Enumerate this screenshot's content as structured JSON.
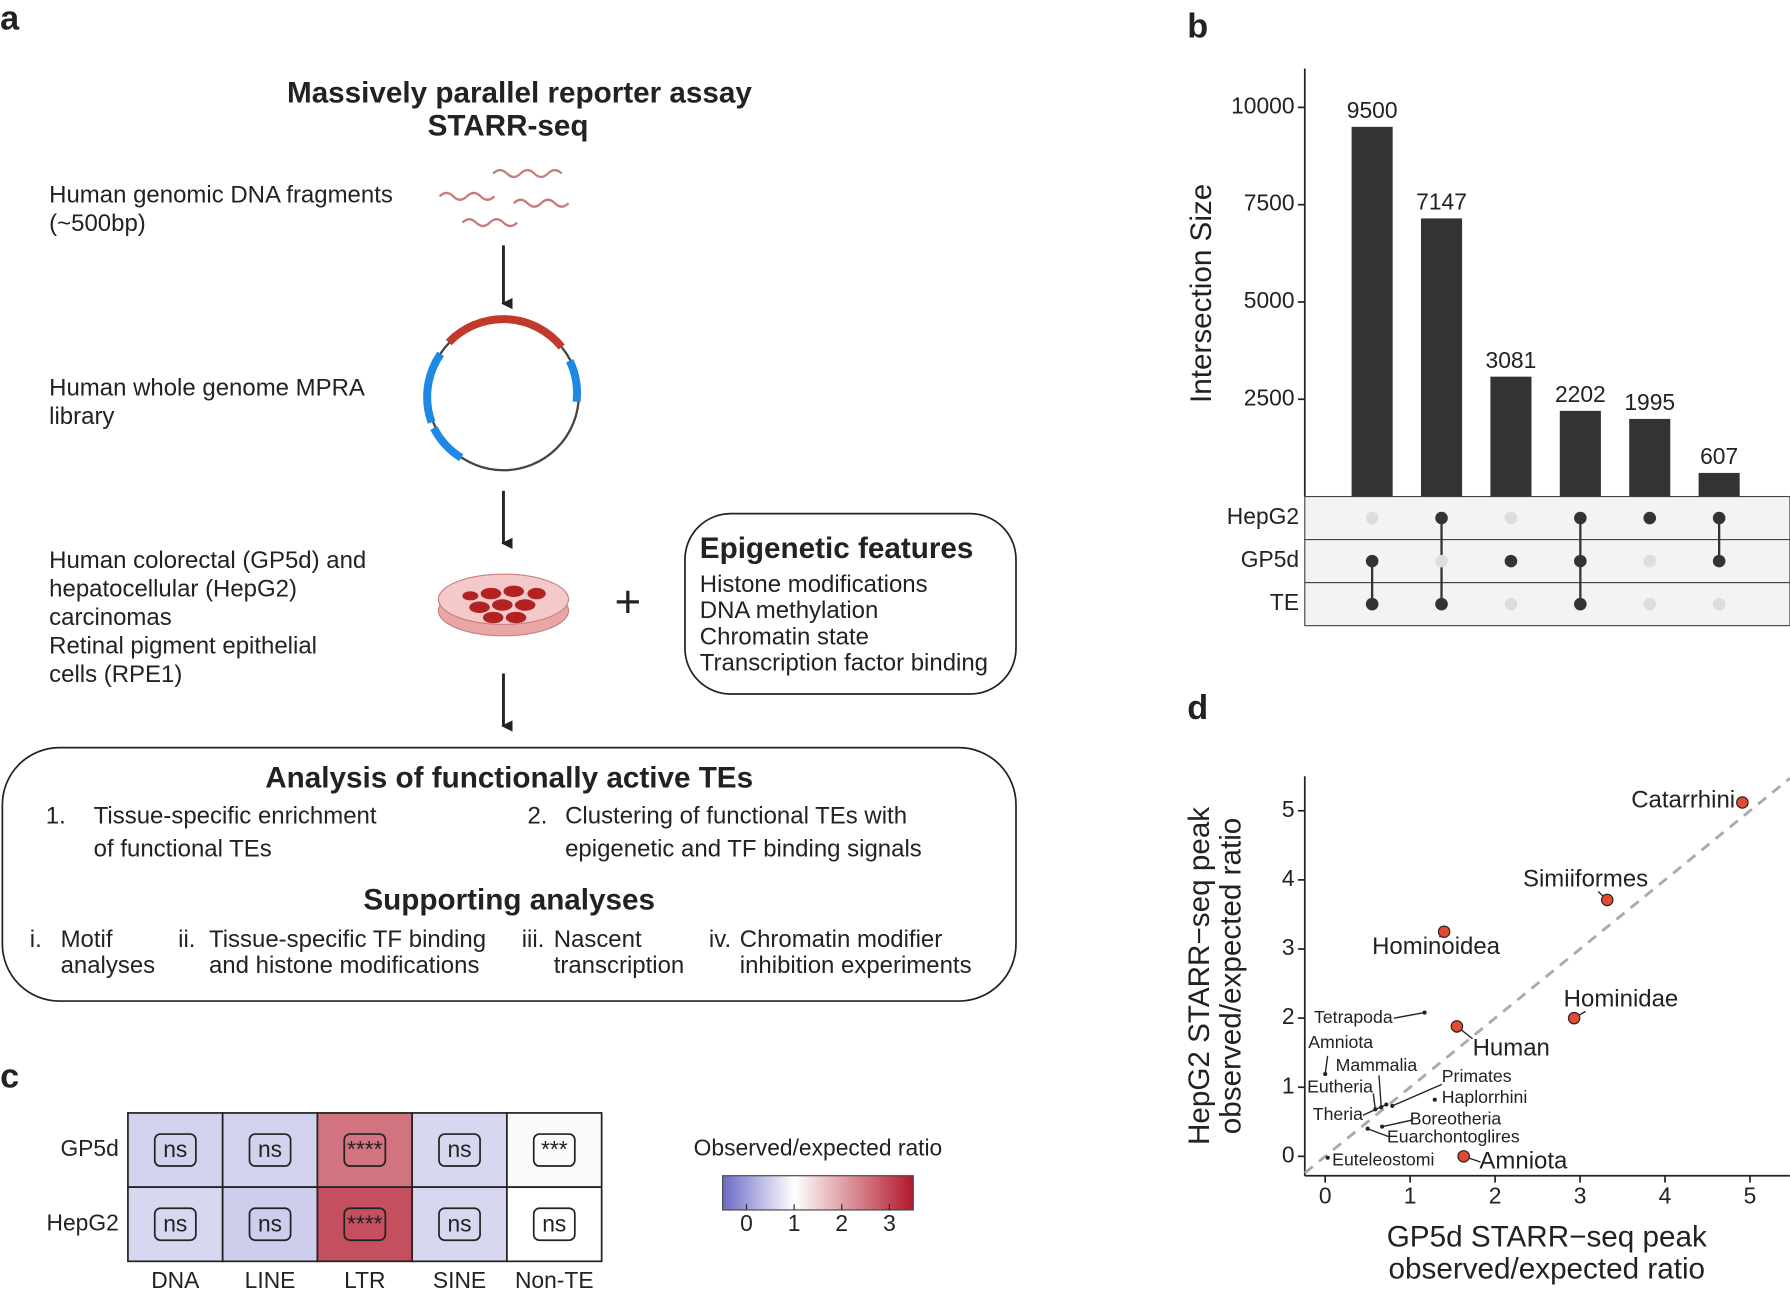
{
  "panel_labels": [
    "a",
    "b",
    "c",
    "d"
  ],
  "panel_a": {
    "title": [
      "Massively parallel reporter assay",
      "STARR-seq"
    ],
    "steps": [
      [
        "Human genomic DNA fragments",
        "(~500bp)"
      ],
      [
        "Human whole genome MPRA",
        "library"
      ],
      [
        "Human colorectal (GP5d) and",
        "hepatocellular (HepG2)",
        "carcinomas",
        "Retinal pigment epithelial",
        "cells (RPE1)"
      ]
    ],
    "plus": "+",
    "epigenetic": {
      "title": "Epigenetic features",
      "items": [
        "Histone modifications",
        "DNA methylation",
        "Chromatin state",
        "Transcription factor binding"
      ]
    },
    "analysis": {
      "title": "Analysis of functionally active TEs",
      "items": [
        {
          "marker": "1.",
          "lines": [
            "Tissue-specific enrichment",
            "of functional TEs"
          ]
        },
        {
          "marker": "2.",
          "lines": [
            "Clustering of functional TEs with",
            "epigenetic and TF binding signals"
          ]
        }
      ],
      "supporting_title": "Supporting analyses",
      "supporting": [
        {
          "marker": "i.",
          "lines": [
            "Motif",
            "analyses"
          ]
        },
        {
          "marker": "ii.",
          "lines": [
            "Tissue-specific TF binding",
            "and histone modifications"
          ]
        },
        {
          "marker": "iii.",
          "lines": [
            "Nascent",
            "transcription"
          ]
        },
        {
          "marker": "iv.",
          "lines": [
            "Chromatin modifier",
            "inhibition experiments"
          ]
        }
      ]
    }
  },
  "chart_data": [
    {
      "type": "upset",
      "ylabel": "Intersection Size",
      "categories": [
        null,
        null,
        null,
        null,
        null,
        null
      ],
      "values": [
        9500,
        7147,
        3081,
        2202,
        1995,
        607
      ],
      "color": "#333333",
      "ylim": [
        0,
        11000
      ],
      "yticks": [
        2500,
        5000,
        7500,
        10000
      ],
      "sets": [
        "HepG2",
        "GP5d",
        "TE"
      ],
      "matrix": [
        [
          false,
          true,
          true
        ],
        [
          true,
          false,
          true
        ],
        [
          false,
          true,
          false
        ],
        [
          true,
          true,
          true
        ],
        [
          true,
          false,
          false
        ],
        [
          true,
          true,
          false
        ]
      ],
      "inactive_color": "#dddddd"
    },
    {
      "type": "heatmap",
      "rows": [
        "GP5d",
        "HepG2"
      ],
      "columns": [
        "DNA",
        "LINE",
        "LTR",
        "SINE",
        "Non-TE"
      ],
      "values": [
        [
          0.55,
          0.55,
          2.5,
          0.6,
          0.95
        ],
        [
          0.6,
          0.5,
          2.9,
          0.6,
          1.0
        ]
      ],
      "annotations": [
        [
          "ns",
          "ns",
          "****",
          "ns",
          "***"
        ],
        [
          "ns",
          "ns",
          "****",
          "ns",
          "ns"
        ]
      ],
      "colorbar_title": "Observed/expected ratio",
      "color_range": [
        -0.5,
        3.5
      ],
      "color_mid": 1,
      "colors": [
        "#6d6ac6",
        "#ffffff",
        "#b2182b"
      ],
      "colorbar_ticks": [
        0,
        1,
        2,
        3
      ]
    },
    {
      "type": "scatter",
      "xlabel": [
        "GP5d STARR−seq peak",
        "observed/expected ratio"
      ],
      "ylabel": [
        "HepG2 STARR−seq peak",
        "observed/expected ratio"
      ],
      "xlim": [
        -0.24,
        5.47
      ],
      "ylim": [
        -0.28,
        5.5
      ],
      "xticks": [
        0,
        1,
        2,
        3,
        4,
        5
      ],
      "yticks": [
        0,
        1,
        2,
        3,
        4,
        5
      ],
      "identity_line": true,
      "highlight_color": "#e34a33",
      "point_color": "#222222",
      "points": [
        {
          "label": "Catarrhini",
          "x": 4.91,
          "y": 5.12,
          "highlighted": true
        },
        {
          "label": "Simiiformes",
          "x": 3.32,
          "y": 3.71,
          "highlighted": true
        },
        {
          "label": "Hominoidea",
          "x": 1.4,
          "y": 3.25,
          "highlighted": true
        },
        {
          "label": "Hominidae",
          "x": 2.93,
          "y": 2.0,
          "highlighted": true
        },
        {
          "label": "Human",
          "x": 1.55,
          "y": 1.88,
          "highlighted": true
        },
        {
          "label": "Amniota",
          "x": 1.63,
          "y": 0.0,
          "highlighted": true
        },
        {
          "label": "Tetrapoda",
          "x": 1.17,
          "y": 2.08,
          "highlighted": false
        },
        {
          "label": "Amniota",
          "x": 0.0,
          "y": 1.19,
          "highlighted": false
        },
        {
          "label": "Mammalia",
          "x": 0.66,
          "y": 0.71,
          "highlighted": false
        },
        {
          "label": "Eutheria",
          "x": 0.59,
          "y": 0.68,
          "highlighted": false
        },
        {
          "label": "Theria",
          "x": 0.72,
          "y": 0.75,
          "highlighted": false
        },
        {
          "label": "Primates",
          "x": 0.79,
          "y": 0.73,
          "highlighted": false
        },
        {
          "label": "Haplorrhini",
          "x": 1.29,
          "y": 0.82,
          "highlighted": false
        },
        {
          "label": "Boreotheria",
          "x": 0.67,
          "y": 0.43,
          "highlighted": false
        },
        {
          "label": "Euarchontoglires",
          "x": 0.5,
          "y": 0.4,
          "highlighted": false
        },
        {
          "label": "Euteleostomi",
          "x": 0.03,
          "y": -0.02,
          "highlighted": false
        }
      ]
    }
  ]
}
